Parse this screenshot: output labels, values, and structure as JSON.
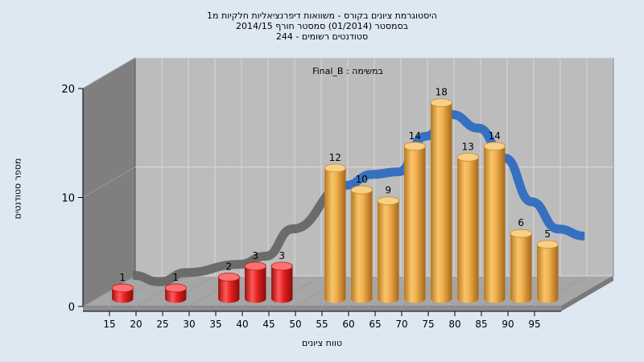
{
  "chart_data": {
    "type": "bar",
    "title_lines": [
      "היסטוגרמת ציונים בקורס - משוואות דיפרנציאליות חלקיות מ1",
      "בסמסטר  (01/2014)  סמסטר חורף 2014/15",
      "סטודנטים רשומים - 244"
    ],
    "annotation": "Final_B : במשימה",
    "ylabel": "מספר סטודנטים",
    "xlabel": "טווח ציונים",
    "ylim": [
      0,
      20
    ],
    "y_ticks": [
      "0",
      "10",
      "20"
    ],
    "x_ticks": [
      "15",
      "20",
      "25",
      "30",
      "35",
      "40",
      "45",
      "50",
      "55",
      "60",
      "65",
      "70",
      "75",
      "80",
      "85",
      "90",
      "95"
    ],
    "categories": [
      15,
      25,
      35,
      40,
      45,
      55,
      60,
      65,
      70,
      75,
      80,
      85,
      90,
      95
    ],
    "values": [
      1,
      1,
      2,
      3,
      3,
      12,
      10,
      9,
      14,
      18,
      13,
      14,
      6,
      5
    ],
    "data_labels": [
      "1",
      "1",
      "2",
      "3",
      "3",
      "12",
      "10",
      "9",
      "14",
      "18",
      "13",
      "14",
      "6",
      "5"
    ],
    "fail_color": "#dd1a1a",
    "pass_color": "#e6a53a",
    "fail_threshold": 55,
    "curve_colors": [
      "#666666",
      "#2f6cc0"
    ],
    "grid": true
  }
}
